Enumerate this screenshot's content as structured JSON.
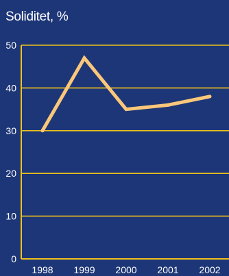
{
  "chart_data": {
    "type": "line",
    "title": "Soliditet, %",
    "xlabel": "",
    "ylabel": "",
    "categories": [
      "1998",
      "1999",
      "2000",
      "2001",
      "2002"
    ],
    "series": [
      {
        "values": [
          30,
          47,
          35,
          36,
          38
        ]
      }
    ],
    "ylim": [
      0,
      50
    ],
    "yticks": [
      0,
      10,
      20,
      30,
      40,
      50
    ],
    "grid": true,
    "legend": "none"
  },
  "colors": {
    "background": "#1d3677",
    "grid": "#f0c21a",
    "line": "#fbc77a",
    "text": "#ffffff"
  }
}
